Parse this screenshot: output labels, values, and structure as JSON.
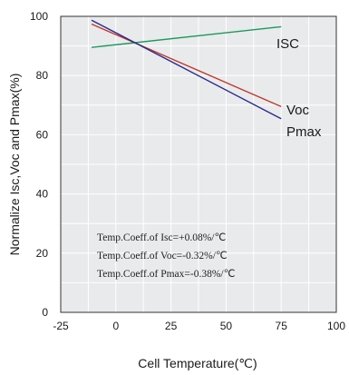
{
  "chart_data": {
    "type": "line",
    "xlabel": "Cell Temperature(℃)",
    "ylabel": "Normalize Isc,Voc and Pmax(%)",
    "xlim": [
      -25,
      100
    ],
    "ylim": [
      0,
      100
    ],
    "x_ticks": [
      "-25",
      "0",
      "25",
      "50",
      "75",
      "100"
    ],
    "y_ticks": [
      "0",
      "20",
      "40",
      "60",
      "80",
      "100"
    ],
    "grid": true,
    "series": [
      {
        "name": "ISC",
        "color": "#1a9a5c",
        "x": [
          -11,
          75
        ],
        "y": [
          89.5,
          96.5
        ]
      },
      {
        "name": "Voc",
        "color": "#c0392b",
        "x": [
          -11,
          75
        ],
        "y": [
          97.4,
          69.5
        ]
      },
      {
        "name": "Pmax",
        "color": "#2a2a8c",
        "x": [
          -11,
          75
        ],
        "y": [
          98.7,
          65.4
        ]
      }
    ],
    "annotations": [
      "Temp.Coeff.of Isc=+0.08%/℃",
      "Temp.Coeff.of Voc=-0.32%/℃",
      "Temp.Coeff.of Pmax=-0.38%/℃"
    ]
  }
}
